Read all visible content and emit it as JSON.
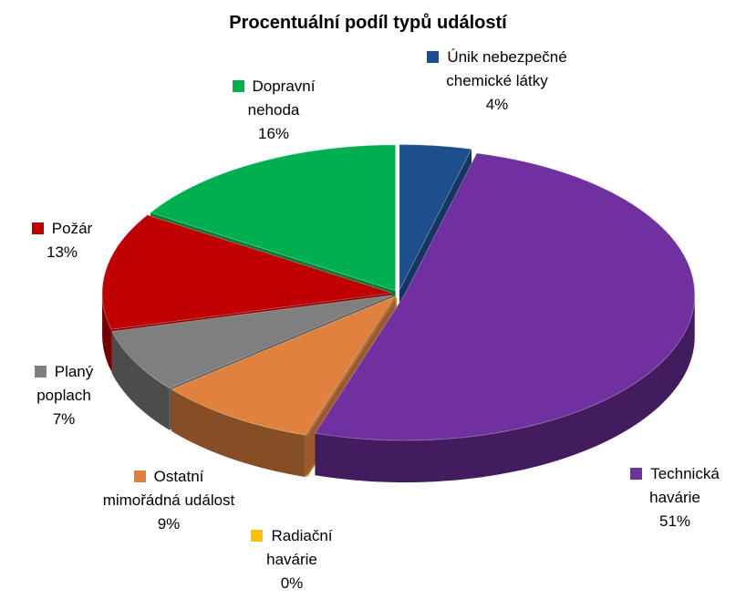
{
  "chart_data": {
    "type": "pie3d",
    "title": "Procentuální podíl typů událostí",
    "categories": [
      "Únik nebezpečné chemické látky",
      "Technická havárie",
      "Radiační havárie",
      "Ostatní mimořádná událost",
      "Planý poplach",
      "Požár",
      "Dopravní nehoda"
    ],
    "values": [
      4,
      51,
      0,
      9,
      7,
      13,
      16
    ],
    "value_labels": [
      "4%",
      "51%",
      "0%",
      "9%",
      "7%",
      "13%",
      "16%"
    ],
    "colors": [
      "#1f4e8c",
      "#7030a0",
      "#ffc000",
      "#e0823d",
      "#7f7f7f",
      "#c00000",
      "#00b050"
    ]
  }
}
